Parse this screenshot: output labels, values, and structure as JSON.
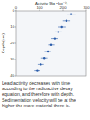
{
  "chart_data": {
    "type": "scatter",
    "x_label": "Activity (Bq • kg⁻¹)",
    "y_label": "Depth (cm)",
    "caption": "Lead activity decreases with time according to the radioactive decay equation, and therefore with depth. Sedimentation velocity will be at the higher the more material there is.",
    "x": [
      235,
      215,
      195,
      180,
      165,
      150,
      135,
      120,
      105,
      90
    ],
    "x_error": [
      18,
      16,
      16,
      15,
      15,
      14,
      14,
      13,
      13,
      12
    ],
    "values": [
      2,
      6,
      10,
      13,
      17,
      21,
      25,
      29,
      33,
      37
    ],
    "color": "#2a5caa",
    "marker": "circle",
    "xlim": [
      0,
      300
    ],
    "xticks": [
      0,
      100,
      200,
      300
    ],
    "ylim": [
      0,
      40
    ],
    "yticks": [
      0,
      10,
      20,
      30,
      40
    ],
    "grid": false
  }
}
